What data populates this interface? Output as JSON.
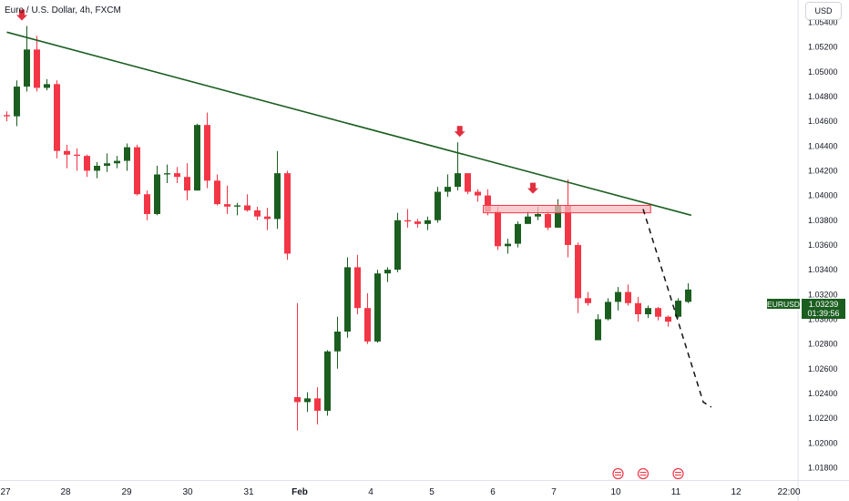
{
  "header": {
    "symbol_title": "Euro / U.S. Dollar, 4h, FXCM",
    "currency_button": "USD"
  },
  "price_label": {
    "symbol": "EURUSD",
    "price": "1.03239",
    "countdown": "01:39:56"
  },
  "colors": {
    "up": "#1b5e20",
    "down": "#f23645",
    "trendline": "#1b5e20",
    "price_tag_bg": "#1b5e20",
    "resistance_zone": "#f8bbc0"
  },
  "chart_data": {
    "type": "candlestick",
    "ylim": [
      1.017,
      1.0558
    ],
    "y_ticks": [
      "1.05400",
      "1.05200",
      "1.05000",
      "1.04800",
      "1.04600",
      "1.04400",
      "1.04200",
      "1.04000",
      "1.03800",
      "1.03600",
      "1.03400",
      "1.03200",
      "1.03000",
      "1.02800",
      "1.02600",
      "1.02400",
      "1.02200",
      "1.02000",
      "1.01800"
    ],
    "x_ticks": [
      "27",
      "28",
      "29",
      "30",
      "31",
      "Feb",
      "4",
      "5",
      "6",
      "7",
      "10",
      "11",
      "12",
      "22:00"
    ],
    "candles": [
      [
        1.0465,
        1.0468,
        1.046,
        1.0464
      ],
      [
        1.0464,
        1.0493,
        1.0456,
        1.0488
      ],
      [
        1.0488,
        1.0537,
        1.0484,
        1.0518
      ],
      [
        1.0518,
        1.0529,
        1.0484,
        1.0487
      ],
      [
        1.0487,
        1.0494,
        1.0485,
        1.049
      ],
      [
        1.049,
        1.0493,
        1.043,
        1.0436
      ],
      [
        1.0436,
        1.0441,
        1.0422,
        1.0433
      ],
      [
        1.0433,
        1.0438,
        1.042,
        1.0432
      ],
      [
        1.0432,
        1.0433,
        1.0415,
        1.042
      ],
      [
        1.042,
        1.0427,
        1.0414,
        1.0424
      ],
      [
        1.0424,
        1.0434,
        1.0419,
        1.0426
      ],
      [
        1.0426,
        1.0432,
        1.0422,
        1.0428
      ],
      [
        1.0428,
        1.0442,
        1.042,
        1.0439
      ],
      [
        1.0439,
        1.0441,
        1.04,
        1.0401
      ],
      [
        1.0401,
        1.0404,
        1.038,
        1.0385
      ],
      [
        1.0385,
        1.0424,
        1.0384,
        1.0417
      ],
      [
        1.0417,
        1.0425,
        1.041,
        1.0418
      ],
      [
        1.0418,
        1.0423,
        1.041,
        1.0415
      ],
      [
        1.0415,
        1.0426,
        1.0396,
        1.0404
      ],
      [
        1.0404,
        1.0458,
        1.0404,
        1.0457
      ],
      [
        1.0457,
        1.0467,
        1.0406,
        1.0412
      ],
      [
        1.0412,
        1.0417,
        1.0392,
        1.0393
      ],
      [
        1.0393,
        1.0408,
        1.0385,
        1.0391
      ],
      [
        1.0391,
        1.0394,
        1.0384,
        1.0392
      ],
      [
        1.0392,
        1.0401,
        1.0387,
        1.0388
      ],
      [
        1.0388,
        1.0391,
        1.038,
        1.0383
      ],
      [
        1.0383,
        1.039,
        1.0372,
        1.0381
      ],
      [
        1.0381,
        1.0436,
        1.0373,
        1.0418
      ],
      [
        1.0418,
        1.042,
        1.0348,
        1.0353
      ],
      [
        1.0237,
        1.0313,
        1.021,
        1.0233
      ],
      [
        1.0233,
        1.0241,
        1.0225,
        1.0236
      ],
      [
        1.0236,
        1.0245,
        1.0215,
        1.0226
      ],
      [
        1.0226,
        1.0275,
        1.0222,
        1.0274
      ],
      [
        1.0274,
        1.0302,
        1.026,
        1.029
      ],
      [
        1.029,
        1.035,
        1.0285,
        1.0342
      ],
      [
        1.0342,
        1.0352,
        1.0304,
        1.0309
      ],
      [
        1.0309,
        1.0321,
        1.028,
        1.0282
      ],
      [
        1.0282,
        1.034,
        1.0281,
        1.0337
      ],
      [
        1.0337,
        1.0342,
        1.033,
        1.034
      ],
      [
        1.034,
        1.0386,
        1.0338,
        1.038
      ],
      [
        1.038,
        1.0389,
        1.0374,
        1.0379
      ],
      [
        1.0379,
        1.0381,
        1.0374,
        1.0377
      ],
      [
        1.0377,
        1.0383,
        1.0372,
        1.038
      ],
      [
        1.038,
        1.0407,
        1.0378,
        1.0403
      ],
      [
        1.0403,
        1.0417,
        1.0399,
        1.0407
      ],
      [
        1.0407,
        1.0443,
        1.0404,
        1.0418
      ],
      [
        1.0418,
        1.0418,
        1.0401,
        1.0403
      ],
      [
        1.0403,
        1.0405,
        1.0395,
        1.04
      ],
      [
        1.04,
        1.0405,
        1.0384,
        1.0387
      ],
      [
        1.0387,
        1.0391,
        1.0356,
        1.0359
      ],
      [
        1.0359,
        1.0365,
        1.0353,
        1.0361
      ],
      [
        1.0361,
        1.0379,
        1.0358,
        1.0377
      ],
      [
        1.0377,
        1.0387,
        1.0377,
        1.0383
      ],
      [
        1.0383,
        1.0391,
        1.038,
        1.0385
      ],
      [
        1.0385,
        1.0388,
        1.0372,
        1.0374
      ],
      [
        1.0374,
        1.0397,
        1.0374,
        1.0392
      ],
      [
        1.0392,
        1.0413,
        1.035,
        1.036
      ],
      [
        1.036,
        1.0362,
        1.0305,
        1.0317
      ],
      [
        1.0317,
        1.0322,
        1.0311,
        1.0313
      ],
      [
        1.0283,
        1.0304,
        1.0283,
        1.03
      ],
      [
        1.03,
        1.0317,
        1.0299,
        1.0314
      ],
      [
        1.0314,
        1.0326,
        1.0307,
        1.0322
      ],
      [
        1.0322,
        1.0328,
        1.0311,
        1.0313
      ],
      [
        1.0313,
        1.0318,
        1.0298,
        1.0304
      ],
      [
        1.0304,
        1.0311,
        1.0301,
        1.0309
      ],
      [
        1.0309,
        1.031,
        1.0299,
        1.0302
      ],
      [
        1.0302,
        1.0303,
        1.0294,
        1.0298
      ],
      [
        1.0302,
        1.0317,
        1.0301,
        1.0315
      ],
      [
        1.0314,
        1.0329,
        1.0313,
        1.0324
      ]
    ],
    "trendline": [
      [
        1.0532,
        0
      ],
      [
        1.0384,
        68.3
      ]
    ],
    "resistance_zone": {
      "y_top": 1.0392,
      "y_bottom": 1.0386,
      "x_from": 47.55,
      "x_to": 64.25
    },
    "projection": [
      [
        63.5,
        1.0389
      ],
      [
        69.5,
        1.0233
      ],
      [
        70.3,
        1.0229
      ]
    ],
    "down_arrows": [
      [
        1.0537,
        1.5
      ],
      [
        1.0443,
        45.2
      ],
      [
        1.0397,
        52.5
      ]
    ],
    "bullet_icon_slots": [
      61,
      63.5,
      67
    ]
  }
}
